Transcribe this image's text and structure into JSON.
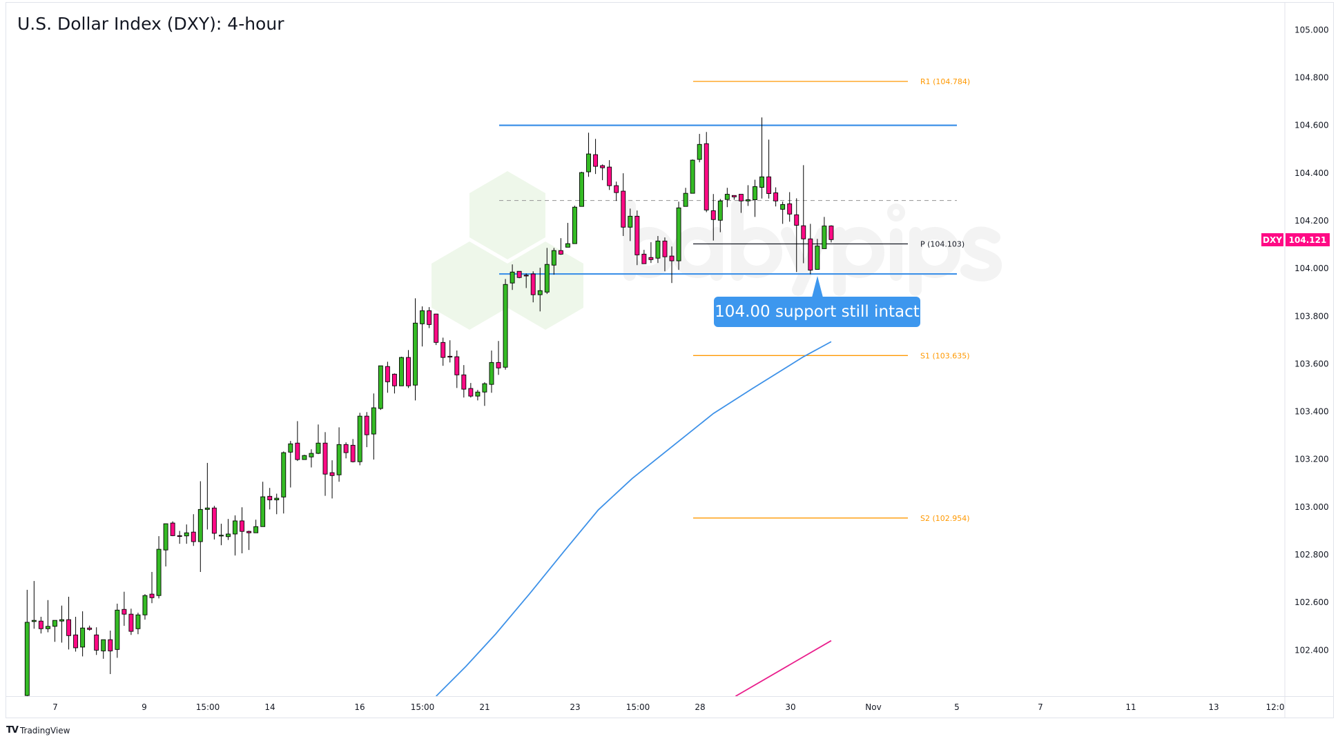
{
  "title": "U.S. Dollar Index (DXY): 4-hour",
  "branding": {
    "tradingview": "TradingView",
    "watermark": "babypips"
  },
  "symbol_tag": {
    "symbol": "DXY",
    "last_price": "104.121",
    "color": "#ff0a85"
  },
  "callout": {
    "text": "104.00 support still intact",
    "color": "#3d97ee"
  },
  "colors": {
    "up": "#35bb25",
    "down": "#ff0a85",
    "level_blue": "#3d91e8",
    "pivot_orange": "#ff9800",
    "ma_fast": "#3d91e8",
    "ma_slow": "#e91e8c"
  },
  "chart_data": {
    "type": "candlestick",
    "title": "U.S. Dollar Index (DXY): 4-hour",
    "ylim": [
      102.2,
      105.1
    ],
    "grid": false,
    "y_ticks": [
      "105.000",
      "104.800",
      "104.600",
      "104.400",
      "104.200",
      "104.000",
      "103.800",
      "103.600",
      "103.400",
      "103.200",
      "103.000",
      "102.800",
      "102.600",
      "102.400"
    ],
    "x_ticks": [
      "7",
      "9",
      "15:00",
      "14",
      "16",
      "15:00",
      "21",
      "23",
      "15:00",
      "28",
      "30",
      "Nov",
      "5",
      "7",
      "11",
      "13",
      "12:0"
    ],
    "ohlc": [
      [
        102.21,
        102.653,
        102.2,
        102.517
      ],
      [
        102.52,
        102.69,
        102.49,
        102.525
      ],
      [
        102.522,
        102.54,
        102.47,
        102.49
      ],
      [
        102.49,
        102.61,
        102.475,
        102.5
      ],
      [
        102.5,
        102.525,
        102.435,
        102.525
      ],
      [
        102.522,
        102.587,
        102.432,
        102.528
      ],
      [
        102.528,
        102.624,
        102.403,
        102.461
      ],
      [
        102.464,
        102.54,
        102.394,
        102.41
      ],
      [
        102.413,
        102.563,
        102.374,
        102.493
      ],
      [
        102.493,
        102.503,
        102.482,
        102.487
      ],
      [
        102.464,
        102.496,
        102.38,
        102.4
      ],
      [
        102.397,
        102.444,
        102.364,
        102.444
      ],
      [
        102.444,
        102.482,
        102.3,
        102.397
      ],
      [
        102.403,
        102.595,
        102.368,
        102.568
      ],
      [
        102.571,
        102.645,
        102.502,
        102.551
      ],
      [
        102.551,
        102.574,
        102.464,
        102.479
      ],
      [
        102.49,
        102.557,
        102.467,
        102.548
      ],
      [
        102.548,
        102.635,
        102.528,
        102.629
      ],
      [
        102.635,
        102.728,
        102.597,
        102.62
      ],
      [
        102.629,
        102.878,
        102.617,
        102.823
      ],
      [
        102.82,
        102.93,
        102.751,
        102.93
      ],
      [
        102.933,
        102.94,
        102.878,
        102.88
      ],
      [
        102.88,
        102.9,
        102.846,
        102.879
      ],
      [
        102.879,
        102.927,
        102.846,
        102.892
      ],
      [
        102.895,
        102.97,
        102.837,
        102.855
      ],
      [
        102.855,
        103.108,
        102.728,
        102.99
      ],
      [
        102.99,
        103.185,
        102.906,
        102.996
      ],
      [
        102.996,
        103.005,
        102.864,
        102.89
      ],
      [
        102.88,
        102.93,
        102.84,
        102.882
      ],
      [
        102.876,
        102.95,
        102.862,
        102.887
      ],
      [
        102.887,
        102.965,
        102.797,
        102.942
      ],
      [
        102.942,
        102.999,
        102.806,
        102.898
      ],
      [
        102.898,
        102.901,
        102.82,
        102.892
      ],
      [
        102.892,
        102.947,
        102.892,
        102.918
      ],
      [
        102.918,
        103.106,
        102.918,
        103.043
      ],
      [
        103.045,
        103.08,
        102.99,
        103.03
      ],
      [
        103.03,
        103.056,
        102.97,
        103.037
      ],
      [
        103.042,
        103.233,
        102.973,
        103.228
      ],
      [
        103.23,
        103.277,
        103.082,
        103.265
      ],
      [
        103.268,
        103.36,
        103.193,
        103.199
      ],
      [
        103.199,
        103.219,
        103.199,
        103.216
      ],
      [
        103.21,
        103.242,
        103.166,
        103.225
      ],
      [
        103.225,
        103.346,
        103.222,
        103.268
      ],
      [
        103.268,
        103.314,
        103.047,
        103.138
      ],
      [
        103.144,
        103.196,
        103.036,
        103.132
      ],
      [
        103.135,
        103.334,
        103.106,
        103.262
      ],
      [
        103.262,
        103.271,
        103.204,
        103.228
      ],
      [
        103.259,
        103.285,
        103.187,
        103.19
      ],
      [
        103.19,
        103.395,
        103.175,
        103.381
      ],
      [
        103.381,
        103.398,
        103.251,
        103.303
      ],
      [
        103.306,
        103.476,
        103.199,
        103.416
      ],
      [
        103.413,
        103.592,
        103.407,
        103.592
      ],
      [
        103.589,
        103.609,
        103.479,
        103.525
      ],
      [
        103.557,
        103.56,
        103.476,
        103.508
      ],
      [
        103.508,
        103.63,
        103.508,
        103.627
      ],
      [
        103.627,
        103.658,
        103.499,
        103.508
      ],
      [
        103.511,
        103.875,
        103.447,
        103.771
      ],
      [
        103.768,
        103.841,
        103.673,
        103.823
      ],
      [
        103.823,
        103.838,
        103.75,
        103.765
      ],
      [
        103.809,
        103.81,
        103.679,
        103.69
      ],
      [
        103.69,
        103.71,
        103.592,
        103.627
      ],
      [
        103.632,
        103.699,
        103.606,
        103.631
      ],
      [
        103.63,
        103.656,
        103.499,
        103.554
      ],
      [
        103.554,
        103.595,
        103.459,
        103.494
      ],
      [
        103.497,
        103.52,
        103.459,
        103.465
      ],
      [
        103.465,
        103.491,
        103.447,
        103.482
      ],
      [
        103.482,
        103.523,
        103.424,
        103.517
      ],
      [
        103.514,
        103.656,
        103.479,
        103.606
      ],
      [
        103.606,
        103.696,
        103.554,
        103.583
      ],
      [
        103.586,
        103.956,
        103.576,
        103.933
      ],
      [
        103.939,
        104.017,
        103.91,
        103.985
      ],
      [
        103.988,
        103.988,
        103.959,
        103.962
      ],
      [
        103.972,
        103.979,
        103.918,
        103.971
      ],
      [
        103.977,
        103.988,
        103.858,
        103.89
      ],
      [
        103.89,
        104.003,
        103.82,
        103.907
      ],
      [
        103.901,
        104.086,
        103.893,
        104.017
      ],
      [
        104.014,
        104.086,
        103.974,
        104.075
      ],
      [
        104.075,
        104.127,
        104.057,
        104.06
      ],
      [
        104.089,
        104.191,
        104.089,
        104.104
      ],
      [
        104.104,
        104.263,
        104.104,
        104.257
      ],
      [
        104.26,
        104.405,
        104.26,
        104.402
      ],
      [
        104.405,
        104.569,
        104.384,
        104.48
      ],
      [
        104.477,
        104.543,
        104.396,
        104.428
      ],
      [
        104.431,
        104.436,
        104.37,
        104.422
      ],
      [
        104.425,
        104.454,
        104.329,
        104.347
      ],
      [
        104.347,
        104.364,
        104.283,
        104.318
      ],
      [
        104.324,
        104.399,
        104.136,
        104.173
      ],
      [
        104.173,
        104.251,
        104.115,
        104.219
      ],
      [
        104.219,
        104.243,
        104.014,
        104.057
      ],
      [
        104.06,
        104.078,
        104.02,
        104.02
      ],
      [
        104.046,
        104.11,
        104.023,
        104.037
      ],
      [
        104.043,
        104.136,
        104.023,
        104.115
      ],
      [
        104.115,
        104.13,
        103.988,
        104.049
      ],
      [
        104.052,
        104.092,
        103.939,
        104.032
      ],
      [
        104.032,
        104.28,
        103.994,
        104.254
      ],
      [
        104.26,
        104.338,
        104.26,
        104.315
      ],
      [
        104.315,
        104.457,
        104.315,
        104.454
      ],
      [
        104.457,
        104.564,
        104.445,
        104.52
      ],
      [
        104.523,
        104.572,
        104.236,
        104.245
      ],
      [
        104.242,
        104.312,
        104.117,
        104.205
      ],
      [
        104.202,
        104.291,
        104.152,
        104.283
      ],
      [
        104.289,
        104.338,
        104.257,
        104.311
      ],
      [
        104.306,
        104.306,
        104.288,
        104.3
      ],
      [
        104.311,
        104.311,
        104.233,
        104.283
      ],
      [
        104.283,
        104.349,
        104.262,
        104.288
      ],
      [
        104.288,
        104.372,
        104.216,
        104.343
      ],
      [
        104.34,
        104.633,
        104.293,
        104.384
      ],
      [
        104.384,
        104.54,
        104.293,
        104.314
      ],
      [
        104.317,
        104.34,
        104.26,
        104.283
      ],
      [
        104.248,
        104.28,
        104.187,
        104.268
      ],
      [
        104.271,
        104.32,
        104.196,
        104.228
      ],
      [
        104.225,
        104.294,
        103.985,
        104.181
      ],
      [
        104.179,
        104.433,
        104.022,
        104.124
      ],
      [
        104.124,
        104.187,
        103.976,
        103.993
      ],
      [
        103.996,
        104.124,
        103.996,
        104.094
      ],
      [
        104.083,
        104.216,
        104.083,
        104.178
      ],
      [
        104.178,
        104.181,
        104.109,
        104.121
      ]
    ],
    "moving_averages": [
      {
        "color": "#3d91e8",
        "points": [
          [
            59,
            102.207
          ],
          [
            63.3,
            102.332
          ],
          [
            67.6,
            102.468
          ],
          [
            72.5,
            102.637
          ],
          [
            77.5,
            102.816
          ],
          [
            82.4,
            102.988
          ],
          [
            87.3,
            103.12
          ],
          [
            94.7,
            103.292
          ],
          [
            99,
            103.392
          ],
          [
            104.6,
            103.496
          ],
          [
            112,
            103.63
          ],
          [
            116,
            103.693
          ]
        ]
      },
      {
        "color": "#e91e8c",
        "points": [
          [
            102.2,
            102.207
          ],
          [
            116,
            102.44
          ]
        ]
      }
    ],
    "levels": [
      {
        "name": "range-top",
        "price": 104.6,
        "style": "solid",
        "color": "#3d91e8"
      },
      {
        "name": "range-mid",
        "price": 104.285,
        "style": "dashed",
        "color": "#9e9e9e"
      },
      {
        "name": "range-bottom",
        "price": 103.977,
        "style": "solid",
        "color": "#3d91e8"
      }
    ],
    "pivots": [
      {
        "label": "R1 (104.784)",
        "price": 104.784,
        "color": "#ff9800"
      },
      {
        "label": "P (104.103)",
        "price": 104.103,
        "color": "#131722"
      },
      {
        "label": "S1 (103.635)",
        "price": 103.635,
        "color": "#ff9800"
      },
      {
        "label": "S2 (102.954)",
        "price": 102.954,
        "color": "#ff9800"
      }
    ]
  }
}
